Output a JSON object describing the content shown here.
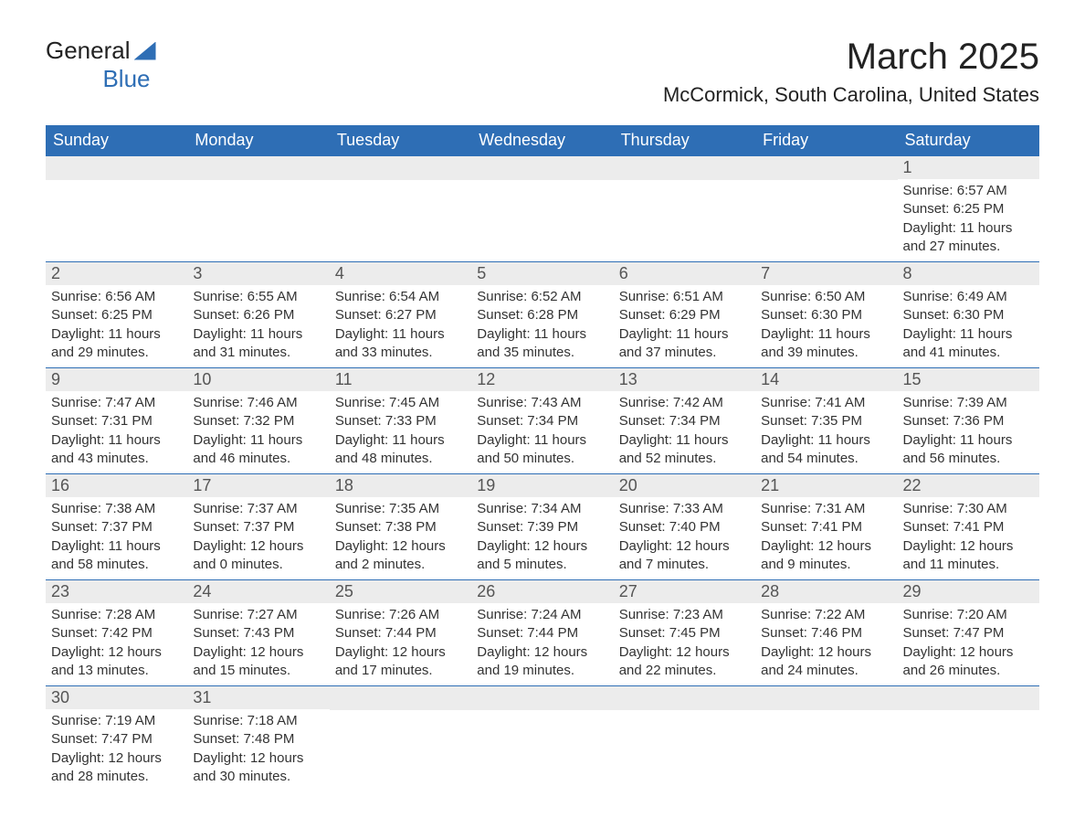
{
  "logo": {
    "line1": "General",
    "line2": "Blue"
  },
  "title": "March 2025",
  "location": "McCormick, South Carolina, United States",
  "columns": [
    "Sunday",
    "Monday",
    "Tuesday",
    "Wednesday",
    "Thursday",
    "Friday",
    "Saturday"
  ],
  "colors": {
    "header_bg": "#2e6eb5",
    "header_text": "#ffffff",
    "daynum_bg": "#ececec",
    "daynum_text": "#555555",
    "row_border": "#2e6eb5",
    "body_text": "#333333",
    "background": "#ffffff"
  },
  "typography": {
    "title_fontsize": 40,
    "location_fontsize": 22,
    "header_fontsize": 18,
    "daynum_fontsize": 18,
    "cell_fontsize": 15
  },
  "weeks": [
    [
      null,
      null,
      null,
      null,
      null,
      null,
      {
        "n": "1",
        "sr": "Sunrise: 6:57 AM",
        "ss": "Sunset: 6:25 PM",
        "d1": "Daylight: 11 hours",
        "d2": "and 27 minutes."
      }
    ],
    [
      {
        "n": "2",
        "sr": "Sunrise: 6:56 AM",
        "ss": "Sunset: 6:25 PM",
        "d1": "Daylight: 11 hours",
        "d2": "and 29 minutes."
      },
      {
        "n": "3",
        "sr": "Sunrise: 6:55 AM",
        "ss": "Sunset: 6:26 PM",
        "d1": "Daylight: 11 hours",
        "d2": "and 31 minutes."
      },
      {
        "n": "4",
        "sr": "Sunrise: 6:54 AM",
        "ss": "Sunset: 6:27 PM",
        "d1": "Daylight: 11 hours",
        "d2": "and 33 minutes."
      },
      {
        "n": "5",
        "sr": "Sunrise: 6:52 AM",
        "ss": "Sunset: 6:28 PM",
        "d1": "Daylight: 11 hours",
        "d2": "and 35 minutes."
      },
      {
        "n": "6",
        "sr": "Sunrise: 6:51 AM",
        "ss": "Sunset: 6:29 PM",
        "d1": "Daylight: 11 hours",
        "d2": "and 37 minutes."
      },
      {
        "n": "7",
        "sr": "Sunrise: 6:50 AM",
        "ss": "Sunset: 6:30 PM",
        "d1": "Daylight: 11 hours",
        "d2": "and 39 minutes."
      },
      {
        "n": "8",
        "sr": "Sunrise: 6:49 AM",
        "ss": "Sunset: 6:30 PM",
        "d1": "Daylight: 11 hours",
        "d2": "and 41 minutes."
      }
    ],
    [
      {
        "n": "9",
        "sr": "Sunrise: 7:47 AM",
        "ss": "Sunset: 7:31 PM",
        "d1": "Daylight: 11 hours",
        "d2": "and 43 minutes."
      },
      {
        "n": "10",
        "sr": "Sunrise: 7:46 AM",
        "ss": "Sunset: 7:32 PM",
        "d1": "Daylight: 11 hours",
        "d2": "and 46 minutes."
      },
      {
        "n": "11",
        "sr": "Sunrise: 7:45 AM",
        "ss": "Sunset: 7:33 PM",
        "d1": "Daylight: 11 hours",
        "d2": "and 48 minutes."
      },
      {
        "n": "12",
        "sr": "Sunrise: 7:43 AM",
        "ss": "Sunset: 7:34 PM",
        "d1": "Daylight: 11 hours",
        "d2": "and 50 minutes."
      },
      {
        "n": "13",
        "sr": "Sunrise: 7:42 AM",
        "ss": "Sunset: 7:34 PM",
        "d1": "Daylight: 11 hours",
        "d2": "and 52 minutes."
      },
      {
        "n": "14",
        "sr": "Sunrise: 7:41 AM",
        "ss": "Sunset: 7:35 PM",
        "d1": "Daylight: 11 hours",
        "d2": "and 54 minutes."
      },
      {
        "n": "15",
        "sr": "Sunrise: 7:39 AM",
        "ss": "Sunset: 7:36 PM",
        "d1": "Daylight: 11 hours",
        "d2": "and 56 minutes."
      }
    ],
    [
      {
        "n": "16",
        "sr": "Sunrise: 7:38 AM",
        "ss": "Sunset: 7:37 PM",
        "d1": "Daylight: 11 hours",
        "d2": "and 58 minutes."
      },
      {
        "n": "17",
        "sr": "Sunrise: 7:37 AM",
        "ss": "Sunset: 7:37 PM",
        "d1": "Daylight: 12 hours",
        "d2": "and 0 minutes."
      },
      {
        "n": "18",
        "sr": "Sunrise: 7:35 AM",
        "ss": "Sunset: 7:38 PM",
        "d1": "Daylight: 12 hours",
        "d2": "and 2 minutes."
      },
      {
        "n": "19",
        "sr": "Sunrise: 7:34 AM",
        "ss": "Sunset: 7:39 PM",
        "d1": "Daylight: 12 hours",
        "d2": "and 5 minutes."
      },
      {
        "n": "20",
        "sr": "Sunrise: 7:33 AM",
        "ss": "Sunset: 7:40 PM",
        "d1": "Daylight: 12 hours",
        "d2": "and 7 minutes."
      },
      {
        "n": "21",
        "sr": "Sunrise: 7:31 AM",
        "ss": "Sunset: 7:41 PM",
        "d1": "Daylight: 12 hours",
        "d2": "and 9 minutes."
      },
      {
        "n": "22",
        "sr": "Sunrise: 7:30 AM",
        "ss": "Sunset: 7:41 PM",
        "d1": "Daylight: 12 hours",
        "d2": "and 11 minutes."
      }
    ],
    [
      {
        "n": "23",
        "sr": "Sunrise: 7:28 AM",
        "ss": "Sunset: 7:42 PM",
        "d1": "Daylight: 12 hours",
        "d2": "and 13 minutes."
      },
      {
        "n": "24",
        "sr": "Sunrise: 7:27 AM",
        "ss": "Sunset: 7:43 PM",
        "d1": "Daylight: 12 hours",
        "d2": "and 15 minutes."
      },
      {
        "n": "25",
        "sr": "Sunrise: 7:26 AM",
        "ss": "Sunset: 7:44 PM",
        "d1": "Daylight: 12 hours",
        "d2": "and 17 minutes."
      },
      {
        "n": "26",
        "sr": "Sunrise: 7:24 AM",
        "ss": "Sunset: 7:44 PM",
        "d1": "Daylight: 12 hours",
        "d2": "and 19 minutes."
      },
      {
        "n": "27",
        "sr": "Sunrise: 7:23 AM",
        "ss": "Sunset: 7:45 PM",
        "d1": "Daylight: 12 hours",
        "d2": "and 22 minutes."
      },
      {
        "n": "28",
        "sr": "Sunrise: 7:22 AM",
        "ss": "Sunset: 7:46 PM",
        "d1": "Daylight: 12 hours",
        "d2": "and 24 minutes."
      },
      {
        "n": "29",
        "sr": "Sunrise: 7:20 AM",
        "ss": "Sunset: 7:47 PM",
        "d1": "Daylight: 12 hours",
        "d2": "and 26 minutes."
      }
    ],
    [
      {
        "n": "30",
        "sr": "Sunrise: 7:19 AM",
        "ss": "Sunset: 7:47 PM",
        "d1": "Daylight: 12 hours",
        "d2": "and 28 minutes."
      },
      {
        "n": "31",
        "sr": "Sunrise: 7:18 AM",
        "ss": "Sunset: 7:48 PM",
        "d1": "Daylight: 12 hours",
        "d2": "and 30 minutes."
      },
      null,
      null,
      null,
      null,
      null
    ]
  ]
}
